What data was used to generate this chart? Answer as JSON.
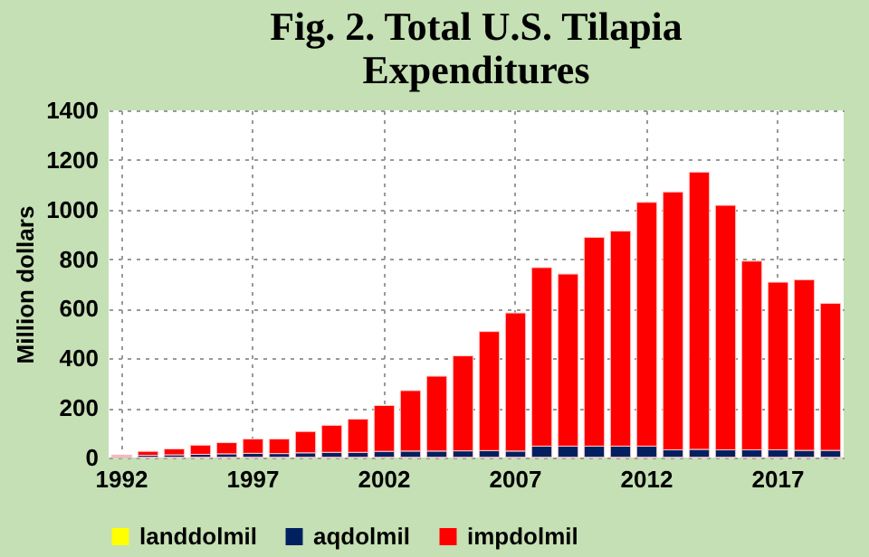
{
  "chart_data": {
    "type": "bar",
    "title": [
      "Fig. 2. Total U.S. Tilapia",
      "Expenditures"
    ],
    "ylabel": "Million dollars",
    "categories": [
      "1992",
      null,
      null,
      null,
      null,
      "1997",
      null,
      null,
      null,
      null,
      "2002",
      null,
      null,
      null,
      null,
      "2007",
      null,
      null,
      null,
      null,
      "2012",
      null,
      null,
      null,
      null,
      "2017",
      null,
      null
    ],
    "stacked": true,
    "series": [
      {
        "name": "landdolmil",
        "color": "#ffff00",
        "values": [
          1,
          1,
          1,
          1,
          1,
          1,
          1,
          1,
          1,
          1,
          1,
          1,
          1,
          1,
          1,
          1,
          1,
          1,
          1,
          1,
          1,
          1,
          1,
          1,
          1,
          1,
          1,
          1
        ]
      },
      {
        "name": "aqdolmil",
        "color": "#002060",
        "values": [
          5,
          8,
          10,
          12,
          14,
          16,
          15,
          18,
          20,
          20,
          24,
          25,
          25,
          26,
          27,
          25,
          45,
          45,
          45,
          45,
          45,
          30,
          32,
          30,
          30,
          30,
          28,
          28
        ]
      },
      {
        "name": "impdolmil",
        "color": "#ff0000",
        "values": [
          4,
          16,
          24,
          37,
          45,
          58,
          59,
          86,
          109,
          134,
          185,
          244,
          302,
          383,
          480,
          557,
          720,
          694,
          842,
          867,
          983,
          1040,
          1118,
          986,
          761,
          676,
          688,
          593
        ]
      }
    ],
    "ylim": [
      0,
      1400
    ],
    "yticks": [
      0,
      200,
      400,
      600,
      800,
      1000,
      1200,
      1400
    ],
    "grid": true,
    "legend": "bottom"
  }
}
